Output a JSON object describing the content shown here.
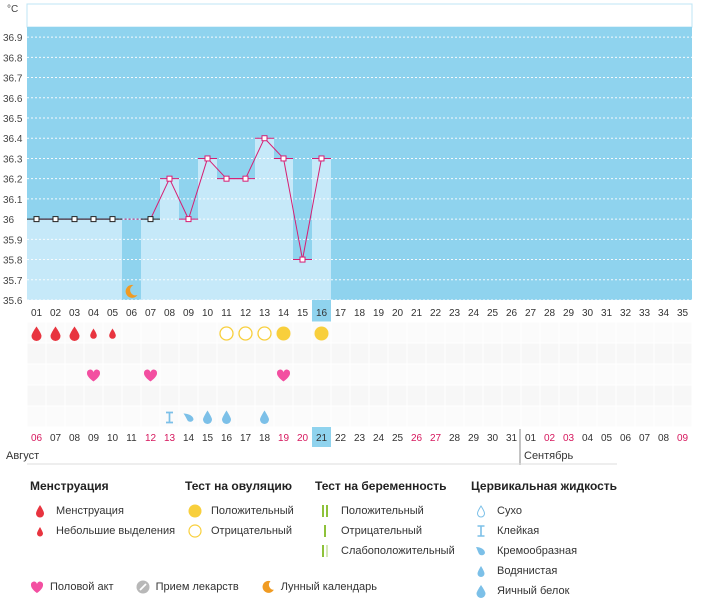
{
  "chart_data": {
    "type": "line",
    "unit": "°C",
    "y_ticks": [
      "36.9",
      "36.8",
      "36.7",
      "36.6",
      "36.5",
      "36.4",
      "36.3",
      "36.2",
      "36.1",
      "36",
      "35.9",
      "35.8",
      "35.7",
      "35.6"
    ],
    "ylim": [
      35.6,
      36.95
    ],
    "cycle_days": [
      "01",
      "02",
      "03",
      "04",
      "05",
      "06",
      "07",
      "08",
      "09",
      "10",
      "11",
      "12",
      "13",
      "14",
      "15",
      "16",
      "17",
      "18",
      "19",
      "20",
      "21",
      "22",
      "23",
      "24",
      "25",
      "26",
      "27",
      "28",
      "29",
      "30",
      "31",
      "32",
      "33",
      "34",
      "35"
    ],
    "temperatures": [
      36.0,
      36.0,
      36.0,
      36.0,
      36.0,
      null,
      36.0,
      36.2,
      36.0,
      36.3,
      36.2,
      36.2,
      36.4,
      36.3,
      35.8,
      36.3
    ],
    "highlight_day": "16",
    "dates": [
      "06",
      "07",
      "08",
      "09",
      "10",
      "11",
      "12",
      "13",
      "14",
      "15",
      "16",
      "17",
      "18",
      "19",
      "20",
      "21",
      "22",
      "23",
      "24",
      "25",
      "26",
      "27",
      "28",
      "29",
      "30",
      "31",
      "01",
      "02",
      "03",
      "04",
      "05",
      "06",
      "07",
      "08",
      "09"
    ],
    "weekend_date_indices": [
      0,
      6,
      7,
      13,
      14,
      20,
      21,
      27,
      28,
      34
    ],
    "highlight_date_index": 15,
    "month_labels": [
      {
        "label": "Август",
        "day_index": 0
      },
      {
        "label": "Сентябрь",
        "day_index": 26
      }
    ],
    "rows": {
      "menstruation": {
        "full": [
          0,
          1,
          2
        ],
        "light": [
          3,
          4
        ]
      },
      "ovulation_test": {
        "negative": [
          10,
          11,
          12
        ],
        "positive": [
          13,
          15
        ]
      },
      "intercourse": [
        3,
        6,
        13
      ],
      "moon": [
        5
      ],
      "cervical": [
        {
          "day": 7,
          "type": "sticky"
        },
        {
          "day": 8,
          "type": "creamy"
        },
        {
          "day": 9,
          "type": "watery"
        },
        {
          "day": 10,
          "type": "watery"
        },
        {
          "day": 12,
          "type": "watery"
        }
      ]
    }
  },
  "legend": {
    "menstruation": {
      "title": "Менструация",
      "items": [
        "Менструация",
        "Небольшие выделения"
      ]
    },
    "ovulation": {
      "title": "Тест на овуляцию",
      "items": [
        "Положительный",
        "Отрицательный"
      ]
    },
    "pregnancy": {
      "title": "Тест на беременность",
      "items": [
        "Положительный",
        "Отрицательный",
        "Слабоположительный"
      ]
    },
    "cervical": {
      "title": "Цервикальная жидкость",
      "items": [
        "Сухо",
        "Клейкая",
        "Кремообразная",
        "Водянистая",
        "Яичный белок"
      ]
    },
    "bottom": [
      "Половой акт",
      "Прием лекарств",
      "Лунный календарь"
    ]
  },
  "colors": {
    "sky": "#8fd3ee",
    "bar": "#c6e9f9",
    "line": "#d61e73",
    "red": "#e8343f",
    "yellow": "#f8cf3c",
    "pink": "#f34fa1",
    "blue": "#7cc0e8",
    "moon": "#f09b22",
    "weekend": "#d6175d",
    "green": "#8ec23a"
  }
}
